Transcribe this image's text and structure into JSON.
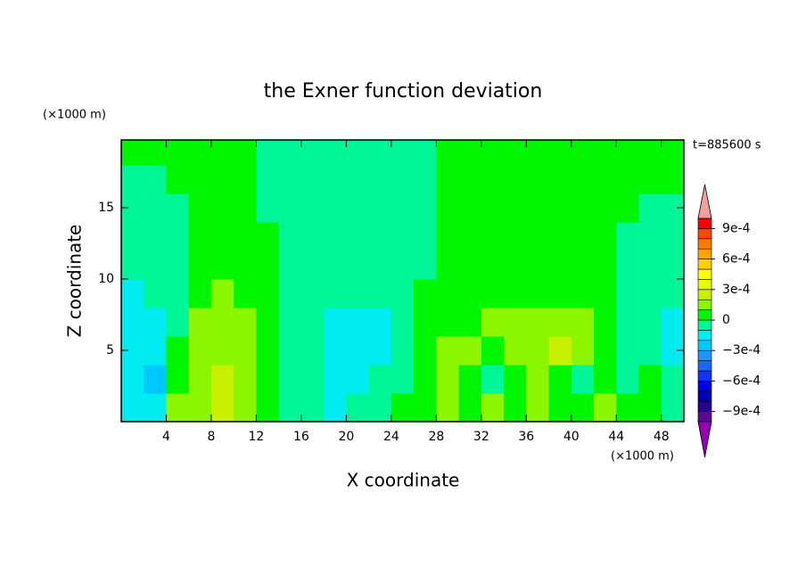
{
  "chart_data": {
    "type": "contour",
    "title": "the Exner function deviation",
    "x_label": "X coordinate",
    "y_label": "Z coordinate",
    "x_unit": "(×1000 m)",
    "y_unit": "(×1000 m)",
    "time_label": "t=885600 s",
    "xlim": [
      0,
      50
    ],
    "ylim": [
      0,
      19.75
    ],
    "xticks": [
      4,
      8,
      12,
      16,
      20,
      24,
      28,
      32,
      36,
      40,
      44,
      48
    ],
    "yticks": [
      5,
      10,
      15
    ],
    "x": [
      1,
      3,
      5,
      7,
      9,
      11,
      13,
      15,
      17,
      19,
      21,
      23,
      25,
      27,
      29,
      31,
      33,
      35,
      37,
      39,
      41,
      43,
      45,
      47,
      49
    ],
    "y": [
      1,
      3,
      5,
      7,
      9,
      11,
      13,
      15,
      17,
      19
    ],
    "z": [
      [
        -0.00015,
        -0.00015,
        0.00015,
        0.00015,
        0.00025,
        0.00015,
        5e-05,
        -5e-05,
        -5e-05,
        -0.00015,
        -5e-05,
        -5e-05,
        5e-05,
        5e-05,
        0.00015,
        5e-05,
        0.00015,
        5e-05,
        0.00015,
        5e-05,
        5e-05,
        0.00015,
        5e-05,
        5e-05,
        -5e-05
      ],
      [
        -0.00015,
        -0.00025,
        5e-05,
        0.00015,
        0.00025,
        0.00015,
        5e-05,
        -5e-05,
        -5e-05,
        -0.00015,
        -0.00015,
        -5e-05,
        -5e-05,
        5e-05,
        0.00015,
        5e-05,
        -5e-05,
        5e-05,
        0.00015,
        5e-05,
        -5e-05,
        5e-05,
        -5e-05,
        5e-05,
        -5e-05
      ],
      [
        -0.00015,
        -0.00015,
        5e-05,
        0.00015,
        0.00015,
        0.00015,
        5e-05,
        -5e-05,
        -5e-05,
        -0.00015,
        -0.00015,
        -0.00015,
        -5e-05,
        5e-05,
        0.00015,
        0.00015,
        5e-05,
        0.00015,
        0.00015,
        0.00025,
        0.00015,
        5e-05,
        -5e-05,
        -5e-05,
        -0.00015
      ],
      [
        -0.00015,
        -0.00015,
        -5e-05,
        0.00015,
        0.00015,
        0.00015,
        5e-05,
        -5e-05,
        -5e-05,
        -0.00015,
        -0.00015,
        -0.00015,
        -5e-05,
        5e-05,
        5e-05,
        5e-05,
        0.00015,
        0.00015,
        0.00015,
        0.00015,
        0.00015,
        5e-05,
        -5e-05,
        -5e-05,
        -0.00015
      ],
      [
        -0.00015,
        -5e-05,
        -5e-05,
        5e-05,
        0.00015,
        5e-05,
        5e-05,
        -5e-05,
        -5e-05,
        -5e-05,
        -5e-05,
        -5e-05,
        -5e-05,
        5e-05,
        5e-05,
        5e-05,
        5e-05,
        5e-05,
        5e-05,
        5e-05,
        5e-05,
        5e-05,
        -5e-05,
        -5e-05,
        -5e-05
      ],
      [
        -5e-05,
        -5e-05,
        -5e-05,
        5e-05,
        5e-05,
        5e-05,
        5e-05,
        -5e-05,
        -5e-05,
        -5e-05,
        -5e-05,
        -5e-05,
        -5e-05,
        -5e-05,
        5e-05,
        5e-05,
        5e-05,
        5e-05,
        5e-05,
        5e-05,
        5e-05,
        5e-05,
        -5e-05,
        -5e-05,
        -5e-05
      ],
      [
        -5e-05,
        -5e-05,
        -5e-05,
        5e-05,
        5e-05,
        5e-05,
        5e-05,
        -5e-05,
        -5e-05,
        -5e-05,
        -5e-05,
        -5e-05,
        -5e-05,
        -5e-05,
        5e-05,
        5e-05,
        5e-05,
        5e-05,
        5e-05,
        5e-05,
        5e-05,
        5e-05,
        -5e-05,
        -5e-05,
        -5e-05
      ],
      [
        -5e-05,
        -5e-05,
        -5e-05,
        5e-05,
        5e-05,
        5e-05,
        -5e-05,
        -5e-05,
        -5e-05,
        -5e-05,
        -5e-05,
        -5e-05,
        -5e-05,
        -5e-05,
        5e-05,
        5e-05,
        5e-05,
        5e-05,
        5e-05,
        5e-05,
        5e-05,
        5e-05,
        5e-05,
        -5e-05,
        -5e-05
      ],
      [
        -5e-05,
        -5e-05,
        5e-05,
        5e-05,
        5e-05,
        5e-05,
        -5e-05,
        -5e-05,
        -5e-05,
        -5e-05,
        -5e-05,
        -5e-05,
        -5e-05,
        -5e-05,
        5e-05,
        5e-05,
        5e-05,
        5e-05,
        5e-05,
        5e-05,
        5e-05,
        5e-05,
        5e-05,
        5e-05,
        5e-05
      ],
      [
        5e-05,
        5e-05,
        5e-05,
        5e-05,
        5e-05,
        5e-05,
        -5e-05,
        -5e-05,
        -5e-05,
        -5e-05,
        -5e-05,
        -5e-05,
        -5e-05,
        -5e-05,
        5e-05,
        5e-05,
        5e-05,
        5e-05,
        5e-05,
        5e-05,
        5e-05,
        5e-05,
        5e-05,
        5e-05,
        5e-05
      ]
    ],
    "levels": [
      -0.001,
      -0.0009,
      -0.0008,
      -0.0007,
      -0.0006,
      -0.0005,
      -0.0004,
      -0.0003,
      -0.0002,
      -0.0001,
      0,
      0.0001,
      0.0002,
      0.0003,
      0.0004,
      0.0005,
      0.0006,
      0.0007,
      0.0008,
      0.0009,
      0.001
    ],
    "colors": [
      "#5a0a96",
      "#28008c",
      "#0000b4",
      "#0000e6",
      "#1432ff",
      "#1e64ff",
      "#1e96ff",
      "#00c8ff",
      "#00ecf0",
      "#00f596",
      "#00f500",
      "#8cf500",
      "#c8f000",
      "#e6ff00",
      "#ffff00",
      "#ffd200",
      "#ffa500",
      "#ff7800",
      "#ff4600",
      "#ff0000"
    ],
    "under_color": "#9400b4",
    "over_color": "#f5a0a0",
    "colorbar_ticks": [
      {
        "value": 0.0009,
        "label": "9e-4"
      },
      {
        "value": 0.0006,
        "label": "6e-4"
      },
      {
        "value": 0.0003,
        "label": "3e-4"
      },
      0,
      {
        "value": -0.0003,
        "label": "−3e-4"
      },
      {
        "value": -0.0006,
        "label": "−6e-4"
      },
      {
        "value": -0.0009,
        "label": "−9e-4"
      }
    ]
  }
}
